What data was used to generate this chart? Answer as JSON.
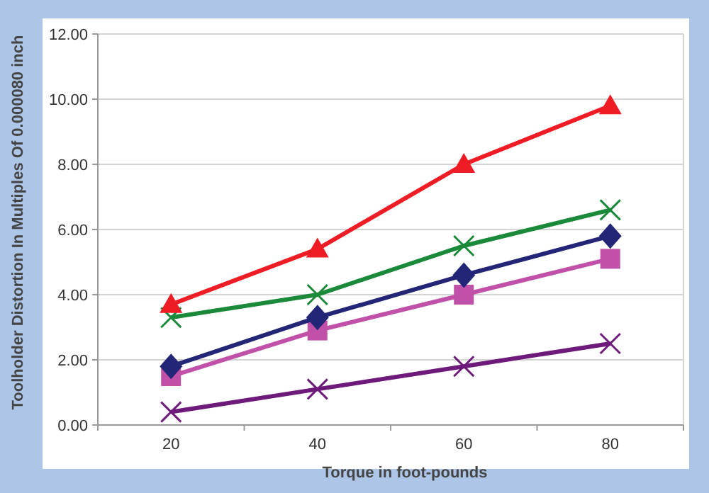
{
  "chart_data": {
    "type": "line",
    "xlabel": "Torque in foot-pounds",
    "ylabel": "Toolholder Distortion In Multiples Of 0.000080 inch",
    "categories": [
      "20",
      "40",
      "60",
      "80"
    ],
    "ylim": [
      0,
      12
    ],
    "yticks": [
      {
        "value": 0,
        "label": "0.00"
      },
      {
        "value": 2,
        "label": "2.00"
      },
      {
        "value": 4,
        "label": "4.00"
      },
      {
        "value": 6,
        "label": "6.00"
      },
      {
        "value": 8,
        "label": "8.00"
      },
      {
        "value": 10,
        "label": "10.00"
      },
      {
        "value": 12,
        "label": "12.00"
      }
    ],
    "grid": "y",
    "line_style": "solid",
    "series": [
      {
        "color": "#ee1c25",
        "marker": "triangle",
        "values": [
          3.7,
          5.4,
          8.0,
          9.8
        ]
      },
      {
        "color": "#1a8a3a",
        "marker": "cross",
        "values": [
          3.3,
          4.0,
          5.5,
          6.6
        ]
      },
      {
        "color": "#232577",
        "marker": "diamond",
        "values": [
          1.8,
          3.3,
          4.6,
          5.8
        ]
      },
      {
        "color": "#c050a8",
        "marker": "square",
        "values": [
          1.5,
          2.9,
          4.0,
          5.1
        ]
      },
      {
        "color": "#6e1a7a",
        "marker": "cross",
        "values": [
          0.4,
          1.1,
          1.8,
          2.5
        ]
      }
    ]
  }
}
